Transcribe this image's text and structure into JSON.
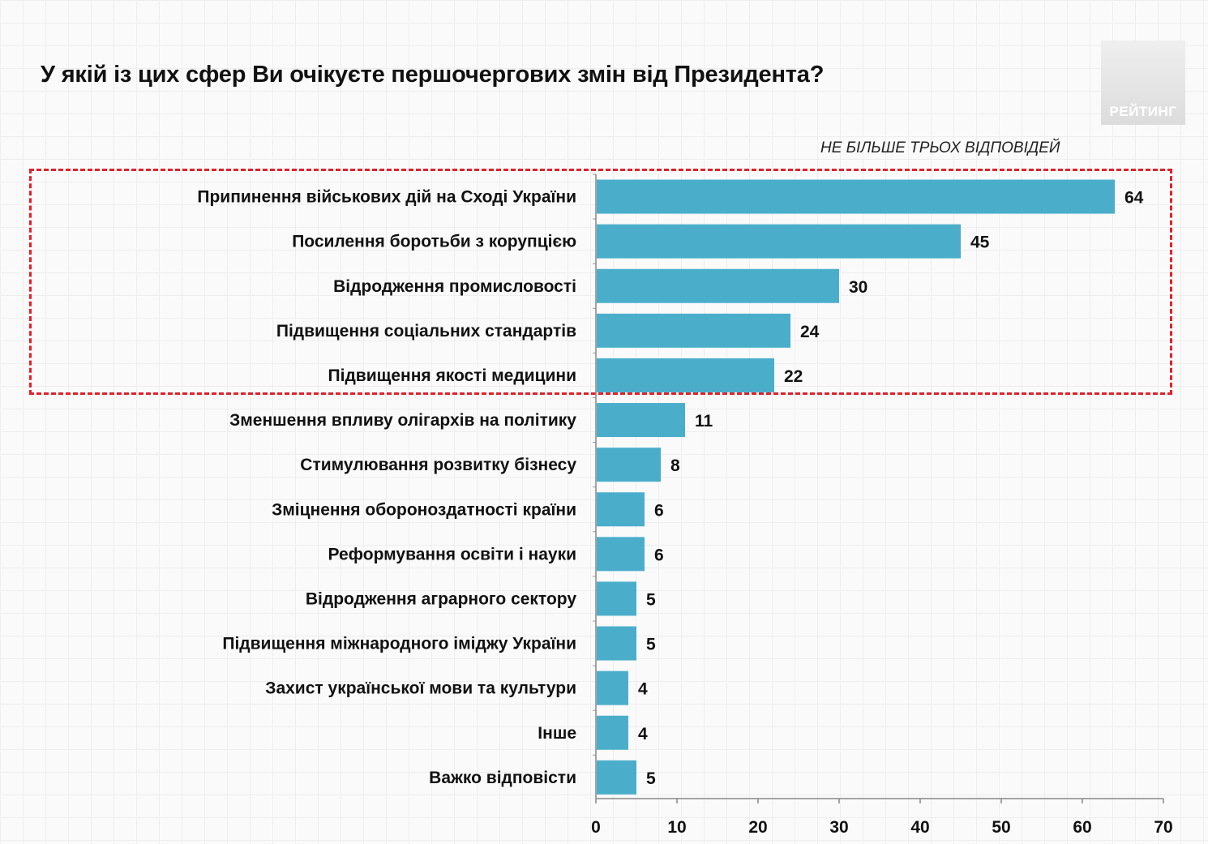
{
  "header": {
    "title": "У якій із цих сфер Ви очікуєте першочергових змін від Президента?",
    "note": "НЕ БІЛЬШЕ ТРЬОХ ВІДПОВІДЕЙ",
    "logo_text": "РЕЙТИНГ"
  },
  "colors": {
    "bar": "#4aaecb",
    "highlight_border": "#e0222a",
    "text": "#111111"
  },
  "chart_data": {
    "type": "bar",
    "orientation": "horizontal",
    "title": "У якій із цих сфер Ви очікуєте першочергових змін від Президента?",
    "subtitle": "НЕ БІЛЬШЕ ТРЬОХ ВІДПОВІДЕЙ",
    "categories": [
      "Припинення військових дій на Сході України",
      "Посилення боротьби з корупцією",
      "Відродження промисловості",
      "Підвищення соціальних стандартів",
      "Підвищення якості медицини",
      "Зменшення впливу олігархів на політику",
      "Стимулювання розвитку бізнесу",
      "Зміцнення обороноздатності країни",
      "Реформування освіти і науки",
      "Відродження аграрного сектору",
      "Підвищення міжнародного іміджу України",
      "Захист української мови та культури",
      "Інше",
      "Важко відповісти"
    ],
    "values": [
      64,
      45,
      30,
      24,
      22,
      11,
      8,
      6,
      6,
      5,
      5,
      4,
      4,
      5
    ],
    "xlim": [
      0,
      70
    ],
    "xticks": [
      0,
      10,
      20,
      30,
      40,
      50,
      60,
      70
    ],
    "highlighted_categories": 5,
    "grid": false,
    "legend": "none"
  }
}
